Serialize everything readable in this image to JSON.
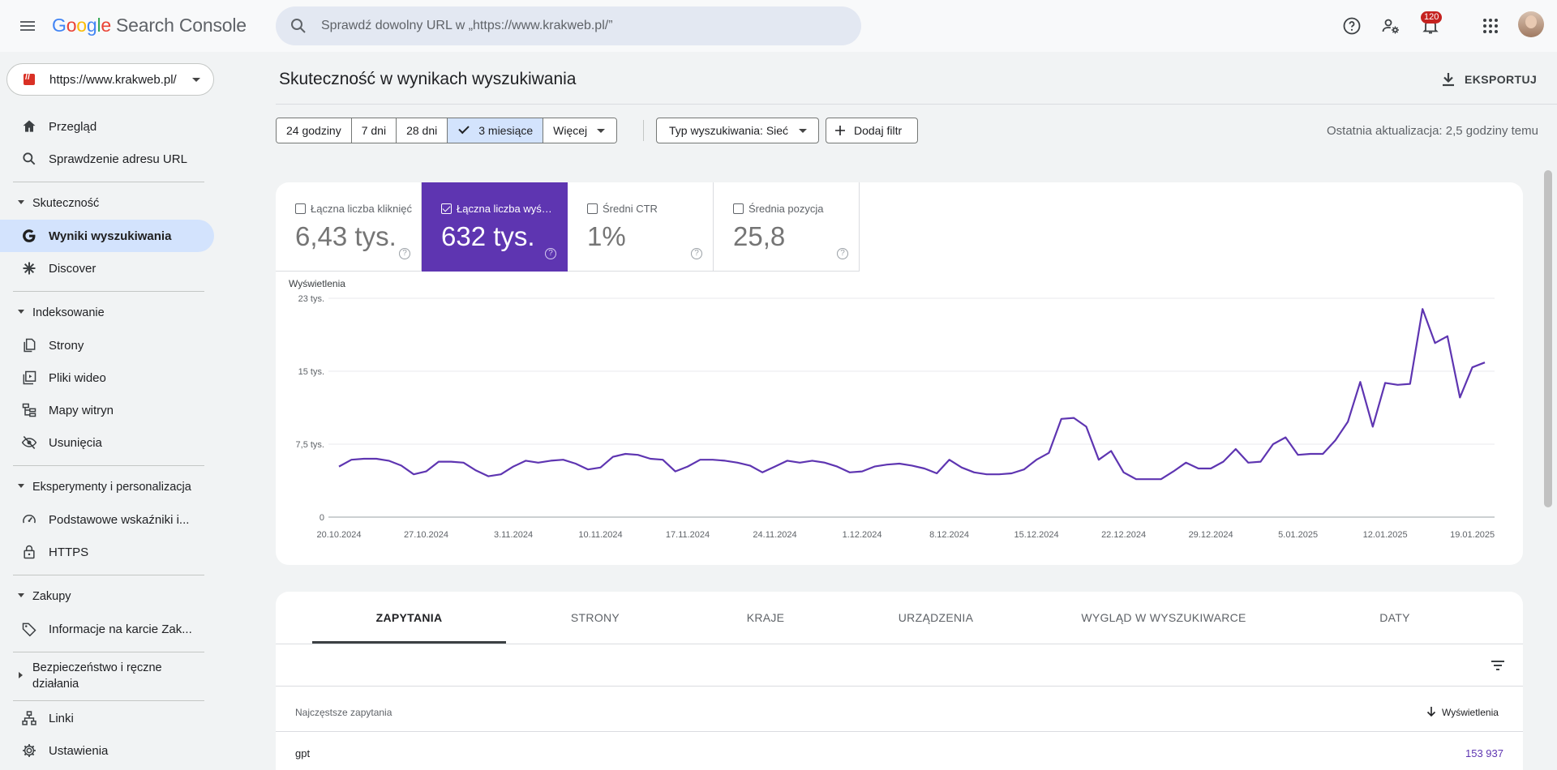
{
  "header": {
    "logo_parts": [
      "G",
      "o",
      "o",
      "g",
      "l",
      "e"
    ],
    "product": "Search Console",
    "search_placeholder": "Sprawdź dowolny URL w „https://www.krakweb.pl/”",
    "notifications_count": "120"
  },
  "sidebar": {
    "property": "https://www.krakweb.pl/",
    "items": [
      {
        "label": "Przegląd",
        "icon": "home-icon"
      },
      {
        "label": "Sprawdzenie adresu URL",
        "icon": "search-icon"
      },
      {
        "section": "Skuteczność"
      },
      {
        "label": "Wyniki wyszukiwania",
        "icon": "google-g-icon",
        "active": true
      },
      {
        "label": "Discover",
        "icon": "asterisk-icon"
      },
      {
        "section": "Indeksowanie"
      },
      {
        "label": "Strony",
        "icon": "pages-icon"
      },
      {
        "label": "Pliki wideo",
        "icon": "video-pages-icon"
      },
      {
        "label": "Mapy witryn",
        "icon": "sitemap-icon"
      },
      {
        "label": "Usunięcia",
        "icon": "eye-off-icon"
      },
      {
        "section": "Eksperymenty i personalizacja"
      },
      {
        "label": "Podstawowe wskaźniki i...",
        "icon": "gauge-icon"
      },
      {
        "label": "HTTPS",
        "icon": "lock-icon"
      },
      {
        "section": "Zakupy"
      },
      {
        "label": "Informacje na karcie Zak...",
        "icon": "tag-icon"
      },
      {
        "section": "Bezpieczeństwo i ręczne działania"
      },
      {
        "label": "Linki",
        "icon": "links-icon"
      },
      {
        "label": "Ustawienia",
        "icon": "gear-icon"
      }
    ],
    "sections": {
      "performance": "Skuteczność",
      "indexing": "Indeksowanie",
      "experience": "Eksperymenty i personalizacja",
      "shopping": "Zakupy",
      "security_line1": "Bezpieczeństwo i ręczne",
      "security_line2": "działania"
    },
    "labels": {
      "overview": "Przegląd",
      "url_inspection": "Sprawdzenie adresu URL",
      "search_results": "Wyniki wyszukiwania",
      "discover": "Discover",
      "pages": "Strony",
      "video": "Pliki wideo",
      "sitemaps": "Mapy witryn",
      "removals": "Usunięcia",
      "cwv": "Podstawowe wskaźniki i...",
      "https": "HTTPS",
      "merchant": "Informacje na karcie Zak...",
      "links": "Linki",
      "settings": "Ustawienia"
    }
  },
  "main": {
    "title": "Skuteczność w wynikach wyszukiwania",
    "export_label": "EKSPORTUJ",
    "date_chips": [
      "24 godziny",
      "7 dni",
      "28 dni",
      "3 miesiące",
      "Więcej"
    ],
    "selected_chip": "3 miesiące",
    "search_type_filter": "Typ wyszukiwania: Sieć",
    "add_filter": "Dodaj filtr",
    "last_update": "Ostatnia aktualizacja: 2,5 godziny temu",
    "metrics": [
      {
        "label": "Łączna liczba kliknięć",
        "value": "6,43 tys.",
        "checked": false
      },
      {
        "label": "Łączna liczba wyświetleń",
        "value": "632 tys.",
        "checked": true
      },
      {
        "label": "Średni CTR",
        "value": "1%",
        "checked": false
      },
      {
        "label": "Średnia pozycja",
        "value": "25,8",
        "checked": false
      }
    ],
    "accent_color": "#5e35b1",
    "tabs": [
      "ZAPYTANIA",
      "STRONY",
      "KRAJE",
      "URZĄDZENIA",
      "WYGLĄD W WYSZUKIWARCE",
      "DATY"
    ],
    "active_tab": "ZAPYTANIA",
    "table": {
      "col_query": "Najczęstsze zapytania",
      "col_impressions": "Wyświetlenia",
      "rows": [
        {
          "query": "gpt",
          "impressions": "153 937"
        }
      ]
    }
  },
  "chart_data": {
    "type": "line",
    "ylabel": "Wyświetlenia",
    "ytick_labels": [
      "0",
      "7,5 tys.",
      "15 tys.",
      "23 tys."
    ],
    "ytick_values": [
      0,
      7500,
      15000,
      22500
    ],
    "ylim": [
      0,
      22500
    ],
    "xtick_labels": [
      "20.10.2024",
      "27.10.2024",
      "3.11.2024",
      "10.11.2024",
      "17.11.2024",
      "24.11.2024",
      "1.12.2024",
      "8.12.2024",
      "15.12.2024",
      "22.12.2024",
      "29.12.2024",
      "5.01.2025",
      "12.01.2025",
      "19.01.2025"
    ],
    "grid": true,
    "series": [
      {
        "color": "#5e35b1",
        "values": [
          5200,
          5900,
          6000,
          6000,
          5800,
          5300,
          4400,
          4700,
          5700,
          5700,
          5600,
          4800,
          4200,
          4400,
          5200,
          5800,
          5600,
          5800,
          5900,
          5500,
          4900,
          5100,
          6200,
          6500,
          6400,
          6000,
          5900,
          4700,
          5200,
          5900,
          5900,
          5800,
          5600,
          5300,
          4600,
          5200,
          5800,
          5600,
          5800,
          5600,
          5200,
          4600,
          4700,
          5200,
          5400,
          5500,
          5300,
          5000,
          4500,
          5900,
          5100,
          4600,
          4400,
          4400,
          4500,
          4900,
          5900,
          6600,
          10100,
          10200,
          9300,
          5900,
          6800,
          4600,
          3900,
          3900,
          3900,
          4700,
          5600,
          5000,
          5000,
          5700,
          7000,
          5600,
          5700,
          7500,
          8200,
          6400,
          6500,
          6500,
          7900,
          9800,
          13900,
          9300,
          13800,
          13600,
          13700,
          21400,
          17900,
          18600,
          12300,
          15400,
          15900
        ]
      }
    ]
  }
}
